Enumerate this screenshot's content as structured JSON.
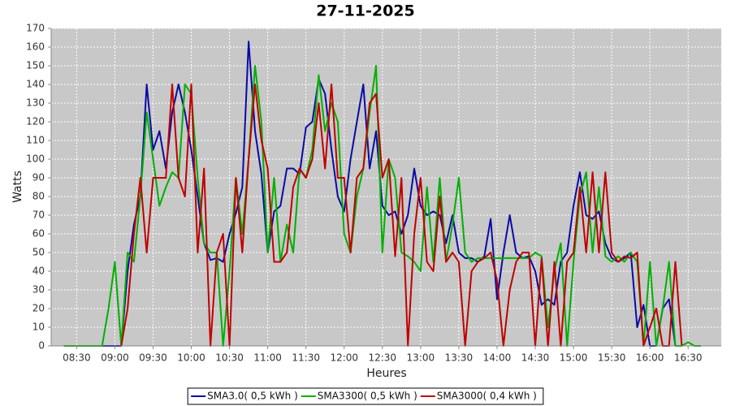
{
  "chart_data": {
    "type": "line",
    "title": "27-11-2025",
    "x_label": "Heures",
    "y_label": "Watts",
    "x": [
      "08:20",
      "08:25",
      "08:30",
      "08:35",
      "08:40",
      "08:45",
      "08:50",
      "08:55",
      "09:00",
      "09:05",
      "09:10",
      "09:15",
      "09:20",
      "09:25",
      "09:30",
      "09:35",
      "09:40",
      "09:45",
      "09:50",
      "09:55",
      "10:00",
      "10:05",
      "10:10",
      "10:15",
      "10:20",
      "10:25",
      "10:30",
      "10:35",
      "10:40",
      "10:45",
      "10:50",
      "10:55",
      "11:00",
      "11:05",
      "11:10",
      "11:15",
      "11:20",
      "11:25",
      "11:30",
      "11:35",
      "11:40",
      "11:45",
      "11:50",
      "11:55",
      "12:00",
      "12:05",
      "12:10",
      "12:15",
      "12:20",
      "12:25",
      "12:30",
      "12:35",
      "12:40",
      "12:45",
      "12:50",
      "12:55",
      "13:00",
      "13:05",
      "13:10",
      "13:15",
      "13:20",
      "13:25",
      "13:30",
      "13:35",
      "13:40",
      "13:45",
      "13:50",
      "13:55",
      "14:00",
      "14:05",
      "14:10",
      "14:15",
      "14:20",
      "14:25",
      "14:30",
      "14:35",
      "14:40",
      "14:45",
      "14:50",
      "14:55",
      "15:00",
      "15:05",
      "15:10",
      "15:15",
      "15:20",
      "15:25",
      "15:30",
      "15:35",
      "15:40",
      "15:45",
      "15:50",
      "15:55",
      "16:00",
      "16:05",
      "16:10",
      "16:15",
      "16:20",
      "16:25",
      "16:30",
      "16:35",
      "16:40"
    ],
    "series": [
      {
        "name": "SMA3.0( 0,5 kWh )",
        "color": "#0a0aa8",
        "values": [
          0,
          0,
          0,
          0,
          0,
          0,
          0,
          0,
          0,
          0,
          40,
          65,
          80,
          140,
          105,
          115,
          95,
          125,
          140,
          125,
          105,
          80,
          55,
          46,
          47,
          45,
          60,
          71,
          85,
          163,
          115,
          92,
          50,
          72,
          75,
          95,
          95,
          92,
          117,
          120,
          143,
          135,
          105,
          80,
          72,
          100,
          120,
          140,
          95,
          115,
          75,
          70,
          72,
          60,
          70,
          95,
          75,
          70,
          72,
          70,
          55,
          70,
          50,
          47,
          47,
          45,
          48,
          68,
          25,
          50,
          70,
          50,
          47,
          48,
          40,
          22,
          25,
          22,
          45,
          50,
          75,
          93,
          70,
          68,
          72,
          55,
          47,
          45,
          47,
          50,
          10,
          22,
          0,
          0,
          20,
          25,
          0,
          null,
          null,
          null,
          null
        ]
      },
      {
        "name": "SMA3300( 0,5 kWh )",
        "color": "#00b000",
        "values": [
          0,
          0,
          0,
          0,
          0,
          0,
          0,
          20,
          45,
          0,
          50,
          45,
          80,
          125,
          100,
          75,
          85,
          93,
          90,
          140,
          135,
          90,
          55,
          50,
          50,
          0,
          40,
          90,
          60,
          100,
          150,
          120,
          50,
          90,
          45,
          65,
          50,
          95,
          90,
          105,
          145,
          115,
          130,
          120,
          60,
          50,
          80,
          95,
          125,
          150,
          50,
          100,
          90,
          50,
          48,
          45,
          40,
          85,
          45,
          90,
          45,
          65,
          90,
          50,
          45,
          47,
          47,
          47,
          47,
          47,
          47,
          47,
          47,
          47,
          50,
          48,
          10,
          40,
          55,
          0,
          45,
          80,
          93,
          50,
          85,
          48,
          45,
          48,
          45,
          50,
          45,
          0,
          45,
          0,
          20,
          45,
          0,
          0,
          2,
          0,
          0
        ]
      },
      {
        "name": "SMA3000( 0,4 kWh )",
        "color": "#c00000",
        "values": [
          null,
          null,
          null,
          null,
          null,
          null,
          null,
          null,
          null,
          0,
          20,
          60,
          90,
          50,
          90,
          90,
          90,
          140,
          90,
          80,
          140,
          50,
          95,
          0,
          50,
          60,
          0,
          90,
          50,
          100,
          140,
          110,
          95,
          45,
          45,
          50,
          85,
          95,
          90,
          100,
          130,
          95,
          140,
          90,
          90,
          50,
          90,
          95,
          130,
          135,
          90,
          100,
          48,
          90,
          0,
          60,
          90,
          45,
          40,
          80,
          45,
          50,
          45,
          0,
          40,
          45,
          47,
          50,
          35,
          0,
          30,
          45,
          50,
          50,
          0,
          47,
          0,
          45,
          0,
          45,
          50,
          85,
          50,
          93,
          50,
          93,
          50,
          45,
          48,
          47,
          50,
          0,
          10,
          20,
          0,
          0,
          45,
          0,
          null,
          null,
          null
        ]
      }
    ],
    "xlim": [
      "08:10",
      "16:56"
    ],
    "xticks": [
      "08:30",
      "09:00",
      "09:30",
      "10:00",
      "10:30",
      "11:00",
      "11:30",
      "12:00",
      "12:30",
      "13:00",
      "13:30",
      "14:00",
      "14:30",
      "15:00",
      "15:30",
      "16:00",
      "16:30"
    ],
    "ylim": [
      0,
      170
    ],
    "yticks": [
      0,
      10,
      20,
      30,
      40,
      50,
      60,
      70,
      80,
      90,
      100,
      110,
      120,
      130,
      140,
      150,
      160,
      170
    ],
    "grid": true,
    "legend": "bottom"
  }
}
